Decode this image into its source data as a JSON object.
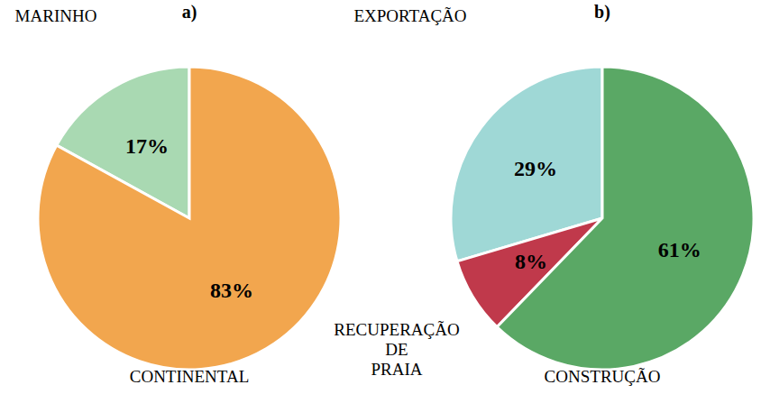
{
  "chart_data": [
    {
      "type": "pie",
      "title": "a)",
      "categories": [
        "MARINHO",
        "CONTINENTAL"
      ],
      "values": [
        17,
        83
      ],
      "value_labels": [
        "17%",
        "83%"
      ],
      "colors": [
        "#a9d9b2",
        "#f2a64e"
      ],
      "data_labels": true
    },
    {
      "type": "pie",
      "title": "b)",
      "categories": [
        "EXPORTAÇÃO",
        "RECUPERAÇÃO DE PRAIA",
        "CONSTRUÇÃO"
      ],
      "values": [
        29,
        8,
        61
      ],
      "value_labels": [
        "29%",
        "8%",
        "61%"
      ],
      "colors": [
        "#9fd8d6",
        "#c0394b",
        "#5aa865"
      ],
      "data_labels": true
    }
  ]
}
